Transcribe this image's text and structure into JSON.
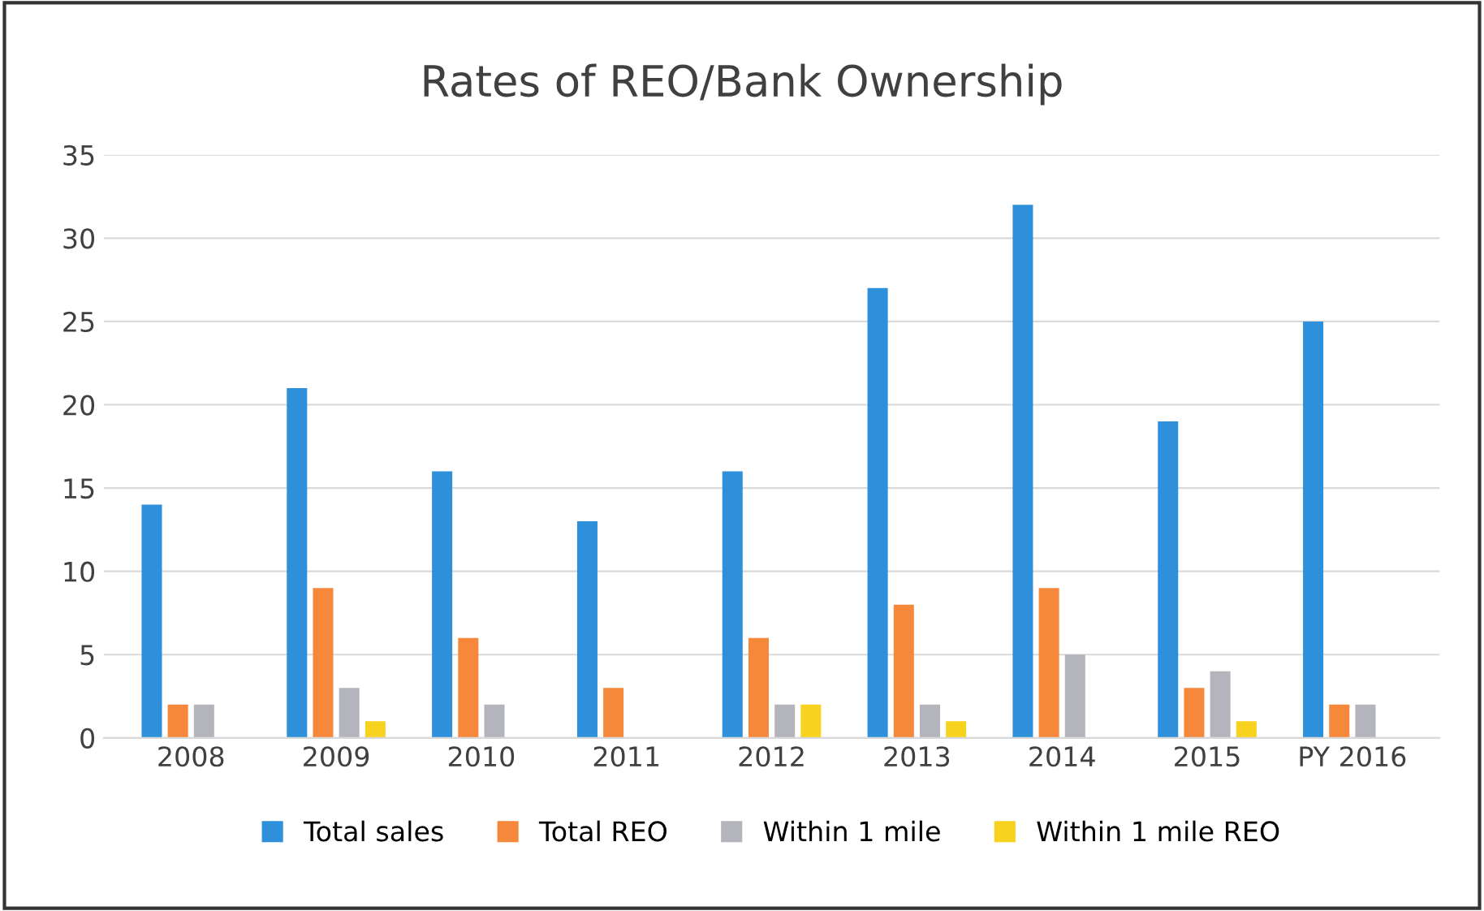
{
  "chart_data": {
    "type": "bar",
    "title": "Rates of REO/Bank Ownership",
    "categories": [
      "2008",
      "2009",
      "2010",
      "2011",
      "2012",
      "2013",
      "2014",
      "2015",
      "PY 2016"
    ],
    "series": [
      {
        "name": "Total sales",
        "color": "#2e90db",
        "values": [
          14,
          21,
          16,
          13,
          16,
          27,
          32,
          19,
          25
        ]
      },
      {
        "name": "Total REO",
        "color": "#f5883a",
        "values": [
          2,
          9,
          6,
          3,
          6,
          8,
          9,
          3,
          2
        ]
      },
      {
        "name": "Within 1 mile",
        "color": "#b4b4bc",
        "values": [
          2,
          3,
          2,
          0,
          2,
          2,
          5,
          4,
          2
        ]
      },
      {
        "name": "Within 1 mile REO",
        "color": "#f7d21e",
        "values": [
          0,
          1,
          0,
          0,
          2,
          1,
          0,
          1,
          0
        ]
      }
    ],
    "ylim": [
      0,
      35
    ],
    "yticks": [
      0,
      5,
      10,
      15,
      20,
      25,
      30,
      35
    ],
    "grid": "y",
    "legend": "bottom"
  }
}
